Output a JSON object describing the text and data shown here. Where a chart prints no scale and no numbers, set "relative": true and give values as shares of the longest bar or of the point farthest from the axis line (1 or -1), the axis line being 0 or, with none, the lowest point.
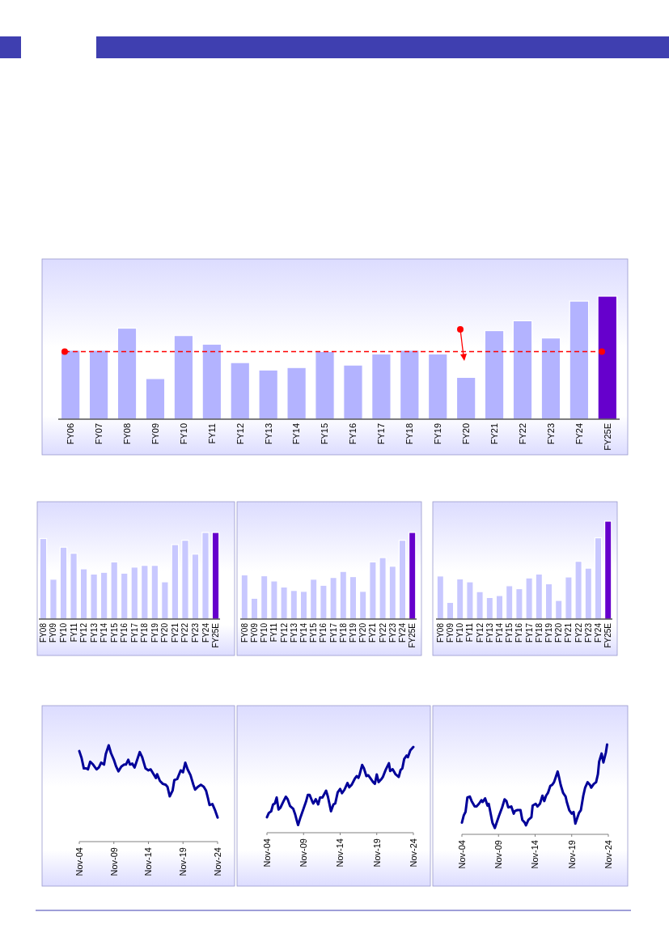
{
  "chart_data": [
    {
      "type": "bar",
      "relative": true,
      "categories": [
        "FY06",
        "FY07",
        "FY08",
        "FY09",
        "FY10",
        "FY11",
        "FY12",
        "FY13",
        "FY14",
        "FY15",
        "FY16",
        "FY17",
        "FY18",
        "FY19",
        "FY20",
        "FY21",
        "FY22",
        "FY23",
        "FY24",
        "FY25E"
      ],
      "values": [
        0.56,
        0.56,
        0.74,
        0.33,
        0.68,
        0.61,
        0.46,
        0.4,
        0.42,
        0.55,
        0.44,
        0.53,
        0.56,
        0.53,
        0.34,
        0.72,
        0.8,
        0.66,
        0.96,
        1
      ],
      "colors": [
        "#b3b3ff",
        "#b3b3ff",
        "#b3b3ff",
        "#b3b3ff",
        "#b3b3ff",
        "#b3b3ff",
        "#b3b3ff",
        "#b3b3ff",
        "#b3b3ff",
        "#b3b3ff",
        "#b3b3ff",
        "#b3b3ff",
        "#b3b3ff",
        "#b3b3ff",
        "#b3b3ff",
        "#b3b3ff",
        "#b3b3ff",
        "#b3b3ff",
        "#b3b3ff",
        "#6600cc"
      ],
      "ref_lines": [
        {
          "axis": "y",
          "value": 0.55,
          "color": "#ff0000",
          "line_style": "dashed"
        }
      ]
    },
    {
      "type": "bar",
      "relative": true,
      "categories": [
        "FY08",
        "FY09",
        "FY10",
        "FY11",
        "FY12",
        "FY13",
        "FY14",
        "FY15",
        "FY16",
        "FY17",
        "FY18",
        "FY19",
        "FY20",
        "FY21",
        "FY22",
        "FY23",
        "FY24",
        "FY25E"
      ],
      "values": [
        0.93,
        0.46,
        0.83,
        0.76,
        0.58,
        0.52,
        0.54,
        0.66,
        0.53,
        0.6,
        0.62,
        0.62,
        0.43,
        0.86,
        0.91,
        0.75,
        1,
        1
      ],
      "colors": [
        "#c8c8ff",
        "#c8c8ff",
        "#c8c8ff",
        "#c8c8ff",
        "#c8c8ff",
        "#c8c8ff",
        "#c8c8ff",
        "#c8c8ff",
        "#c8c8ff",
        "#c8c8ff",
        "#c8c8ff",
        "#c8c8ff",
        "#c8c8ff",
        "#c8c8ff",
        "#c8c8ff",
        "#c8c8ff",
        "#c8c8ff",
        "#6600cc"
      ]
    },
    {
      "type": "bar",
      "relative": true,
      "categories": [
        "FY08",
        "FY09",
        "FY10",
        "FY11",
        "FY12",
        "FY13",
        "FY14",
        "FY15",
        "FY16",
        "FY17",
        "FY18",
        "FY19",
        "FY20",
        "FY21",
        "FY22",
        "FY23",
        "FY24",
        "FY25E"
      ],
      "values": [
        0.51,
        0.24,
        0.5,
        0.44,
        0.37,
        0.33,
        0.32,
        0.46,
        0.39,
        0.48,
        0.55,
        0.49,
        0.32,
        0.66,
        0.71,
        0.61,
        0.91,
        1
      ],
      "colors": [
        "#c8c8ff",
        "#c8c8ff",
        "#c8c8ff",
        "#c8c8ff",
        "#c8c8ff",
        "#c8c8ff",
        "#c8c8ff",
        "#c8c8ff",
        "#c8c8ff",
        "#c8c8ff",
        "#c8c8ff",
        "#c8c8ff",
        "#c8c8ff",
        "#c8c8ff",
        "#c8c8ff",
        "#c8c8ff",
        "#c8c8ff",
        "#6600cc"
      ]
    },
    {
      "type": "bar",
      "relative": true,
      "categories": [
        "FY08",
        "FY09",
        "FY10",
        "FY11",
        "FY12",
        "FY13",
        "FY14",
        "FY15",
        "FY16",
        "FY17",
        "FY18",
        "FY19",
        "FY20",
        "FY21",
        "FY22",
        "FY23",
        "FY24",
        "FY25E"
      ],
      "values": [
        0.44,
        0.17,
        0.41,
        0.38,
        0.28,
        0.22,
        0.24,
        0.34,
        0.31,
        0.42,
        0.46,
        0.36,
        0.19,
        0.43,
        0.59,
        0.52,
        0.83,
        1
      ],
      "colors": [
        "#c8c8ff",
        "#c8c8ff",
        "#c8c8ff",
        "#c8c8ff",
        "#c8c8ff",
        "#c8c8ff",
        "#c8c8ff",
        "#c8c8ff",
        "#c8c8ff",
        "#c8c8ff",
        "#c8c8ff",
        "#c8c8ff",
        "#c8c8ff",
        "#c8c8ff",
        "#c8c8ff",
        "#c8c8ff",
        "#c8c8ff",
        "#6600cc"
      ]
    },
    {
      "type": "line",
      "relative": true,
      "xlim": [
        "2004-11",
        "2024-11"
      ],
      "xticks": [
        {
          "value": "2004-11",
          "label": "Nov-04"
        },
        {
          "value": "2009-11",
          "label": "Nov-09"
        },
        {
          "value": "2014-11",
          "label": "Nov-14"
        },
        {
          "value": "2019-11",
          "label": "Nov-19"
        },
        {
          "value": "2024-11",
          "label": "Nov-24"
        }
      ],
      "series": [
        {
          "color": "#000099",
          "x": [
            "2004-11",
            "2005-03",
            "2005-07",
            "2005-11",
            "2006-02",
            "2006-06",
            "2006-11",
            "2007-05",
            "2007-09",
            "2008-01",
            "2008-06",
            "2008-09",
            "2009-02",
            "2009-06",
            "2009-11",
            "2010-03",
            "2010-07",
            "2010-12",
            "2011-05",
            "2011-08",
            "2011-12",
            "2012-03",
            "2012-07",
            "2012-11",
            "2013-03",
            "2013-08",
            "2013-12",
            "2014-06",
            "2014-11",
            "2015-03",
            "2015-07",
            "2015-12",
            "2016-02",
            "2016-07",
            "2016-12",
            "2017-05",
            "2017-08",
            "2017-12",
            "2018-05",
            "2018-08",
            "2019-01",
            "2019-07",
            "2019-11",
            "2020-03",
            "2020-07",
            "2020-12",
            "2021-05",
            "2021-08",
            "2022-01",
            "2022-06",
            "2022-11",
            "2023-03",
            "2023-06",
            "2023-09",
            "2024-02",
            "2024-07",
            "2024-11"
          ],
          "values": [
            0.94,
            0.87,
            0.76,
            0.76,
            0.75,
            0.83,
            0.8,
            0.75,
            0.77,
            0.82,
            0.8,
            0.91,
            1,
            0.92,
            0.85,
            0.78,
            0.73,
            0.78,
            0.8,
            0.8,
            0.85,
            0.8,
            0.81,
            0.77,
            0.84,
            0.93,
            0.88,
            0.76,
            0.74,
            0.75,
            0.71,
            0.66,
            0.7,
            0.63,
            0.6,
            0.59,
            0.57,
            0.47,
            0.53,
            0.64,
            0.65,
            0.74,
            0.72,
            0.82,
            0.75,
            0.69,
            0.59,
            0.54,
            0.57,
            0.59,
            0.57,
            0.53,
            0.46,
            0.38,
            0.39,
            0.32,
            0.25
          ]
        }
      ]
    },
    {
      "type": "line",
      "relative": true,
      "xlim": [
        "2004-11",
        "2024-11"
      ],
      "xticks": [
        {
          "value": "2004-11",
          "label": "Nov-04"
        },
        {
          "value": "2009-11",
          "label": "Nov-09"
        },
        {
          "value": "2014-11",
          "label": "Nov-14"
        },
        {
          "value": "2019-11",
          "label": "Nov-19"
        },
        {
          "value": "2024-11",
          "label": "Nov-24"
        }
      ],
      "series": [
        {
          "color": "#000099",
          "x": [
            "2004-11",
            "2005-02",
            "2005-06",
            "2005-09",
            "2005-12",
            "2006-03",
            "2006-06",
            "2006-09",
            "2007-01",
            "2007-06",
            "2007-09",
            "2008-01",
            "2008-06",
            "2008-09",
            "2008-12",
            "2009-02",
            "2009-06",
            "2009-11",
            "2010-03",
            "2010-06",
            "2010-09",
            "2011-01",
            "2011-03",
            "2011-07",
            "2011-11",
            "2012-02",
            "2012-06",
            "2012-12",
            "2013-03",
            "2013-08",
            "2013-12",
            "2014-03",
            "2014-07",
            "2014-11",
            "2015-02",
            "2015-06",
            "2015-11",
            "2016-02",
            "2016-06",
            "2016-11",
            "2017-02",
            "2017-05",
            "2017-07",
            "2017-11",
            "2018-02",
            "2018-06",
            "2018-09",
            "2019-01",
            "2019-05",
            "2019-08",
            "2019-11",
            "2020-02",
            "2020-06",
            "2020-09",
            "2021-02",
            "2021-07",
            "2021-09",
            "2022-01",
            "2022-06",
            "2022-11",
            "2023-02",
            "2023-05",
            "2023-08",
            "2023-12",
            "2024-02",
            "2024-06",
            "2024-11"
          ],
          "values": [
            0.18,
            0.23,
            0.25,
            0.33,
            0.34,
            0.41,
            0.27,
            0.29,
            0.35,
            0.42,
            0.39,
            0.31,
            0.28,
            0.22,
            0.14,
            0.09,
            0.18,
            0.28,
            0.36,
            0.44,
            0.44,
            0.37,
            0.34,
            0.39,
            0.33,
            0.41,
            0.41,
            0.49,
            0.42,
            0.25,
            0.33,
            0.34,
            0.47,
            0.51,
            0.46,
            0.5,
            0.58,
            0.53,
            0.56,
            0.63,
            0.66,
            0.64,
            0.68,
            0.79,
            0.75,
            0.66,
            0.67,
            0.63,
            0.59,
            0.57,
            0.68,
            0.59,
            0.62,
            0.65,
            0.74,
            0.81,
            0.72,
            0.74,
            0.68,
            0.65,
            0.73,
            0.75,
            0.86,
            0.9,
            0.88,
            0.96,
            1
          ]
        }
      ]
    },
    {
      "type": "line",
      "relative": true,
      "xlim": [
        "2004-11",
        "2024-11"
      ],
      "xticks": [
        {
          "value": "2004-11",
          "label": "Nov-04"
        },
        {
          "value": "2009-11",
          "label": "Nov-09"
        },
        {
          "value": "2014-11",
          "label": "Nov-14"
        },
        {
          "value": "2019-11",
          "label": "Nov-19"
        },
        {
          "value": "2024-11",
          "label": "Nov-24"
        }
      ],
      "series": [
        {
          "color": "#000099",
          "x": [
            "2004-11",
            "2005-02",
            "2005-05",
            "2005-08",
            "2005-12",
            "2006-03",
            "2006-08",
            "2006-11",
            "2007-03",
            "2007-07",
            "2007-09",
            "2008-01",
            "2008-05",
            "2008-07",
            "2008-09",
            "2009-01",
            "2009-05",
            "2009-08",
            "2009-12",
            "2010-05",
            "2010-09",
            "2010-12",
            "2011-03",
            "2011-08",
            "2011-12",
            "2012-02",
            "2012-06",
            "2012-11",
            "2013-02",
            "2013-06",
            "2013-08",
            "2013-12",
            "2014-05",
            "2014-07",
            "2014-12",
            "2015-03",
            "2015-07",
            "2015-11",
            "2016-02",
            "2016-05",
            "2016-08",
            "2016-12",
            "2017-03",
            "2017-06",
            "2017-09",
            "2017-12",
            "2018-02",
            "2018-05",
            "2018-09",
            "2019-01",
            "2019-03",
            "2019-07",
            "2019-11",
            "2020-02",
            "2020-05",
            "2020-08",
            "2020-11",
            "2021-02",
            "2021-06",
            "2021-09",
            "2022-01",
            "2022-05",
            "2022-07",
            "2022-11",
            "2023-03",
            "2023-06",
            "2023-08",
            "2023-12",
            "2024-03",
            "2024-07",
            "2024-09"
          ],
          "values": [
            0.13,
            0.21,
            0.25,
            0.41,
            0.42,
            0.37,
            0.31,
            0.31,
            0.34,
            0.38,
            0.36,
            0.4,
            0.32,
            0.34,
            0.27,
            0.13,
            0.07,
            0.13,
            0.21,
            0.3,
            0.39,
            0.37,
            0.3,
            0.31,
            0.23,
            0.26,
            0.27,
            0.27,
            0.16,
            0.13,
            0.1,
            0.16,
            0.19,
            0.32,
            0.34,
            0.31,
            0.34,
            0.43,
            0.37,
            0.43,
            0.46,
            0.54,
            0.55,
            0.58,
            0.64,
            0.7,
            0.64,
            0.55,
            0.46,
            0.42,
            0.36,
            0.27,
            0.23,
            0.25,
            0.12,
            0.18,
            0.24,
            0.27,
            0.43,
            0.52,
            0.58,
            0.55,
            0.52,
            0.56,
            0.58,
            0.67,
            0.81,
            0.9,
            0.8,
            0.91,
            1
          ]
        }
      ]
    }
  ]
}
